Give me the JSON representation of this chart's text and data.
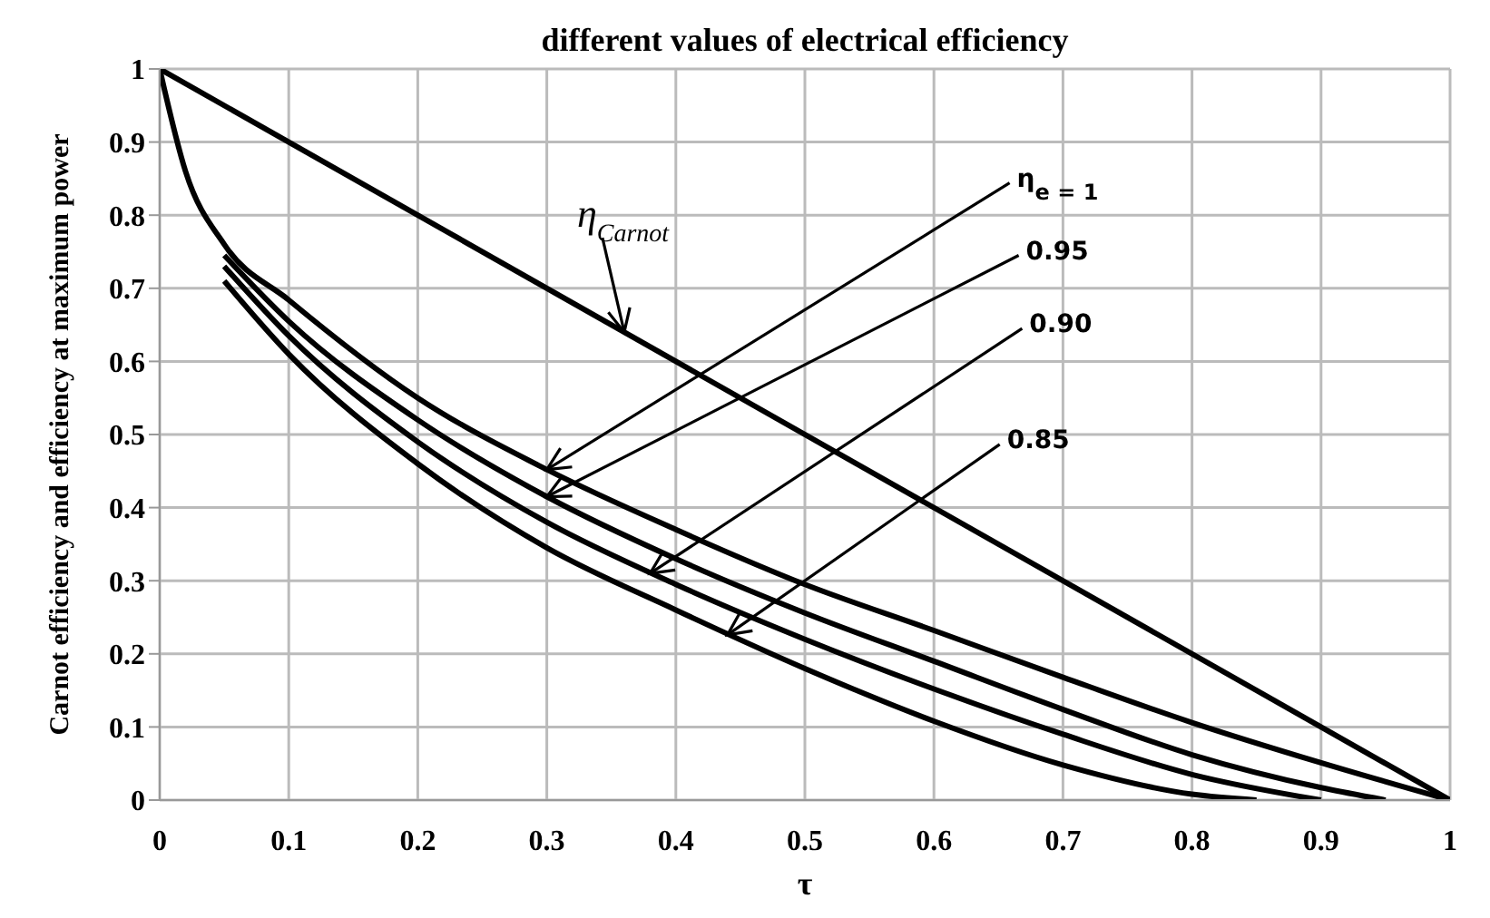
{
  "chart_data": {
    "type": "line",
    "title": "different values of electrical efficiency",
    "xlabel": "τ",
    "ylabel": "Carnot efficiency and efficiency at maximum power",
    "series": [
      {
        "color": "#000000",
        "x": [
          0,
          1
        ],
        "values": [
          1,
          0
        ]
      },
      {
        "color": "#000000",
        "x": [
          0,
          0.02,
          0.05,
          0.1,
          0.2,
          0.3,
          0.4,
          0.5,
          0.6,
          0.7,
          0.8,
          0.9,
          1
        ],
        "values": [
          1,
          0.86,
          0.76,
          0.684,
          0.55,
          0.452,
          0.37,
          0.295,
          0.232,
          0.168,
          0.106,
          0.051,
          0
        ]
      },
      {
        "color": "#000000",
        "x": [
          0.05,
          0.1,
          0.2,
          0.3,
          0.4,
          0.5,
          0.6,
          0.7,
          0.8,
          0.9,
          0.95
        ],
        "values": [
          0.745,
          0.655,
          0.52,
          0.415,
          0.33,
          0.256,
          0.19,
          0.124,
          0.062,
          0.017,
          0
        ]
      },
      {
        "color": "#000000",
        "x": [
          0.05,
          0.1,
          0.2,
          0.3,
          0.4,
          0.5,
          0.6,
          0.7,
          0.8,
          0.9
        ],
        "values": [
          0.73,
          0.635,
          0.49,
          0.38,
          0.295,
          0.22,
          0.152,
          0.09,
          0.035,
          0
        ]
      },
      {
        "color": "#000000",
        "x": [
          0.05,
          0.1,
          0.2,
          0.3,
          0.4,
          0.5,
          0.6,
          0.7,
          0.8,
          0.85
        ],
        "values": [
          0.71,
          0.61,
          0.46,
          0.345,
          0.26,
          0.18,
          0.108,
          0.048,
          0.008,
          0
        ]
      }
    ],
    "annotations": [
      {
        "text": "η$_{Carnot}$",
        "x": 0.36,
        "y": 0.64
      },
      {
        "text": "η$_{e = 1}$",
        "x": 0.3,
        "y": 0.452
      },
      {
        "text": "0.95",
        "x": 0.3,
        "y": 0.415
      },
      {
        "text": "0.90",
        "x": 0.38,
        "y": 0.31
      },
      {
        "text": "0.85",
        "x": 0.44,
        "y": 0.226
      }
    ],
    "xlim": [
      0,
      1
    ],
    "ylim": [
      0,
      1
    ],
    "xticks": [
      0,
      0.1,
      0.2,
      0.3,
      0.4,
      0.5,
      0.6,
      0.7,
      0.8,
      0.9,
      1
    ],
    "yticks": [
      0,
      0.1,
      0.2,
      0.3,
      0.4,
      0.5,
      0.6,
      0.7,
      0.8,
      0.9,
      1
    ],
    "grid": true,
    "marker": "none",
    "line_style": "solid"
  }
}
